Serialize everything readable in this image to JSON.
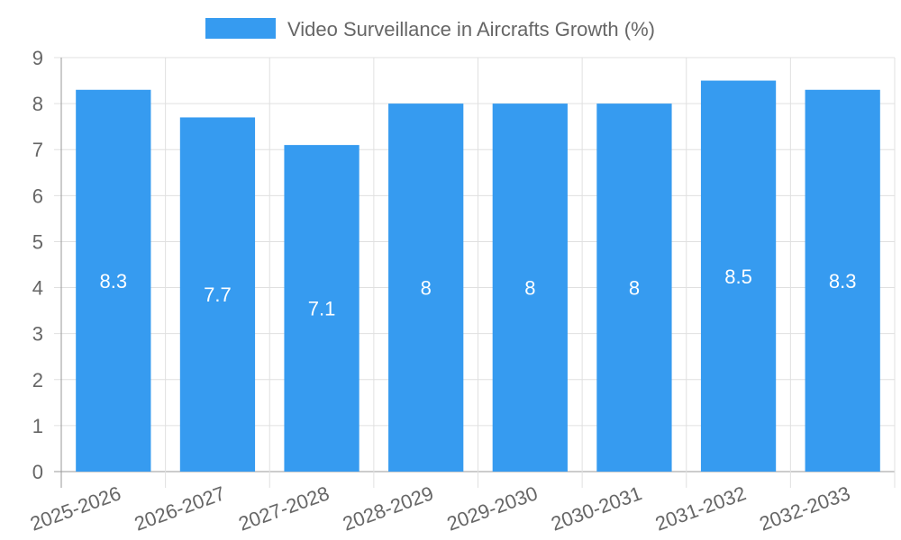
{
  "chart_data": {
    "type": "bar",
    "title": "",
    "legend": {
      "label": "Video Surveillance in Aircrafts Growth (%)",
      "position": "top"
    },
    "categories": [
      "2025-2026",
      "2026-2027",
      "2027-2028",
      "2028-2029",
      "2029-2030",
      "2030-2031",
      "2031-2032",
      "2032-2033"
    ],
    "series": [
      {
        "name": "Video Surveillance in Aircrafts Growth (%)",
        "values": [
          8.3,
          7.7,
          7.1,
          8,
          8,
          8,
          8.5,
          8.3
        ]
      }
    ],
    "data_labels": [
      "8.3",
      "7.7",
      "7.1",
      "8",
      "8",
      "8",
      "8.5",
      "8.3"
    ],
    "xlabel": "",
    "ylabel": "",
    "ylim": [
      0,
      9
    ],
    "yticks": [
      "0",
      "1",
      "2",
      "3",
      "4",
      "5",
      "6",
      "7",
      "8",
      "9"
    ],
    "grid": true,
    "colors": {
      "bar": "#369BF0",
      "grid": "#e0e0e0",
      "text": "#666666",
      "label": "#ffffff"
    }
  }
}
